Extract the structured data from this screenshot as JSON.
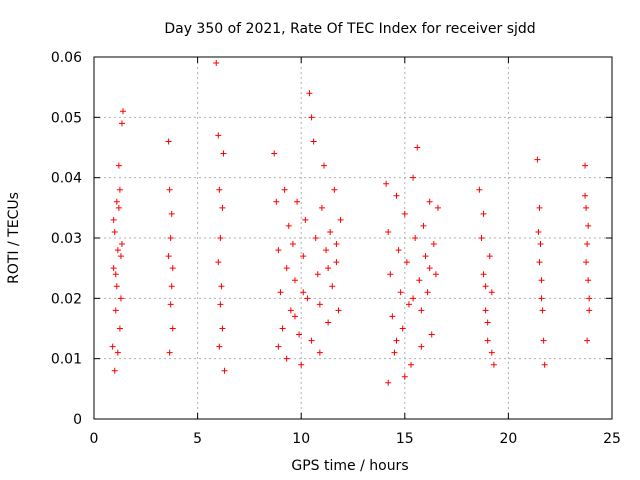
{
  "chart_data": {
    "type": "scatter",
    "title": "Day 350 of 2021, Rate Of TEC Index for receiver sjdd",
    "xlabel": "GPS time / hours",
    "ylabel": "ROTI / TECUs",
    "xlim": [
      0,
      25
    ],
    "ylim": [
      0,
      0.06
    ],
    "xticks": [
      0,
      5,
      10,
      15,
      20,
      25
    ],
    "xtick_labels": [
      "0",
      "5",
      "10",
      "15",
      "20",
      "25"
    ],
    "yticks": [
      0,
      0.01,
      0.02,
      0.03,
      0.04,
      0.05,
      0.06
    ],
    "ytick_labels": [
      "0",
      "0.01",
      "0.02",
      "0.03",
      "0.04",
      "0.05",
      "0.06"
    ],
    "grid": true,
    "marker": "+",
    "color": "#ff0000",
    "series": [
      {
        "name": "ROTI",
        "points": [
          [
            0.9,
            0.012
          ],
          [
            0.95,
            0.025
          ],
          [
            1.0,
            0.031
          ],
          [
            1.05,
            0.018
          ],
          [
            1.1,
            0.022
          ],
          [
            1.15,
            0.028
          ],
          [
            1.2,
            0.035
          ],
          [
            1.25,
            0.015
          ],
          [
            1.3,
            0.027
          ],
          [
            1.35,
            0.049
          ],
          [
            1.4,
            0.051
          ],
          [
            1.0,
            0.008
          ],
          [
            1.1,
            0.036
          ],
          [
            1.2,
            0.042
          ],
          [
            1.3,
            0.02
          ],
          [
            1.15,
            0.011
          ],
          [
            0.95,
            0.033
          ],
          [
            1.05,
            0.024
          ],
          [
            1.25,
            0.038
          ],
          [
            1.35,
            0.029
          ],
          [
            3.6,
            0.046
          ],
          [
            3.65,
            0.038
          ],
          [
            3.7,
            0.03
          ],
          [
            3.75,
            0.022
          ],
          [
            3.8,
            0.015
          ],
          [
            3.6,
            0.027
          ],
          [
            3.7,
            0.019
          ],
          [
            3.65,
            0.011
          ],
          [
            3.75,
            0.034
          ],
          [
            3.8,
            0.025
          ],
          [
            5.9,
            0.059
          ],
          [
            6.0,
            0.047
          ],
          [
            6.05,
            0.038
          ],
          [
            6.1,
            0.03
          ],
          [
            6.15,
            0.022
          ],
          [
            6.2,
            0.015
          ],
          [
            6.25,
            0.044
          ],
          [
            6.3,
            0.008
          ],
          [
            6.0,
            0.026
          ],
          [
            6.1,
            0.019
          ],
          [
            6.2,
            0.035
          ],
          [
            6.05,
            0.012
          ],
          [
            8.7,
            0.044
          ],
          [
            8.8,
            0.036
          ],
          [
            8.9,
            0.028
          ],
          [
            9.0,
            0.021
          ],
          [
            9.1,
            0.015
          ],
          [
            9.2,
            0.038
          ],
          [
            9.3,
            0.025
          ],
          [
            9.4,
            0.032
          ],
          [
            9.5,
            0.018
          ],
          [
            9.6,
            0.029
          ],
          [
            9.7,
            0.023
          ],
          [
            9.8,
            0.036
          ],
          [
            9.9,
            0.014
          ],
          [
            10.0,
            0.009
          ],
          [
            10.1,
            0.027
          ],
          [
            10.2,
            0.033
          ],
          [
            10.3,
            0.02
          ],
          [
            10.4,
            0.054
          ],
          [
            10.5,
            0.05
          ],
          [
            10.6,
            0.046
          ],
          [
            10.7,
            0.03
          ],
          [
            10.8,
            0.024
          ],
          [
            10.9,
            0.019
          ],
          [
            11.0,
            0.035
          ],
          [
            11.1,
            0.042
          ],
          [
            11.2,
            0.028
          ],
          [
            11.3,
            0.016
          ],
          [
            11.4,
            0.031
          ],
          [
            11.5,
            0.022
          ],
          [
            11.6,
            0.038
          ],
          [
            11.7,
            0.026
          ],
          [
            11.8,
            0.018
          ],
          [
            11.9,
            0.033
          ],
          [
            8.9,
            0.012
          ],
          [
            9.3,
            0.01
          ],
          [
            9.7,
            0.017
          ],
          [
            10.1,
            0.021
          ],
          [
            10.5,
            0.013
          ],
          [
            10.9,
            0.011
          ],
          [
            11.3,
            0.025
          ],
          [
            11.7,
            0.029
          ],
          [
            14.1,
            0.039
          ],
          [
            14.2,
            0.031
          ],
          [
            14.3,
            0.024
          ],
          [
            14.4,
            0.017
          ],
          [
            14.5,
            0.011
          ],
          [
            14.6,
            0.037
          ],
          [
            14.7,
            0.028
          ],
          [
            14.8,
            0.021
          ],
          [
            14.9,
            0.015
          ],
          [
            15.0,
            0.034
          ],
          [
            15.1,
            0.026
          ],
          [
            15.2,
            0.019
          ],
          [
            15.3,
            0.009
          ],
          [
            15.4,
            0.04
          ],
          [
            15.5,
            0.03
          ],
          [
            15.6,
            0.045
          ],
          [
            15.7,
            0.023
          ],
          [
            15.8,
            0.018
          ],
          [
            15.9,
            0.032
          ],
          [
            16.0,
            0.027
          ],
          [
            16.1,
            0.021
          ],
          [
            16.2,
            0.036
          ],
          [
            16.3,
            0.014
          ],
          [
            16.4,
            0.029
          ],
          [
            16.5,
            0.024
          ],
          [
            14.2,
            0.006
          ],
          [
            14.6,
            0.013
          ],
          [
            15.0,
            0.007
          ],
          [
            15.4,
            0.02
          ],
          [
            15.8,
            0.012
          ],
          [
            16.2,
            0.025
          ],
          [
            16.6,
            0.035
          ],
          [
            18.6,
            0.038
          ],
          [
            18.7,
            0.03
          ],
          [
            18.8,
            0.024
          ],
          [
            18.9,
            0.018
          ],
          [
            19.0,
            0.013
          ],
          [
            19.1,
            0.027
          ],
          [
            19.2,
            0.021
          ],
          [
            19.3,
            0.009
          ],
          [
            18.8,
            0.034
          ],
          [
            19.0,
            0.016
          ],
          [
            19.2,
            0.011
          ],
          [
            18.9,
            0.022
          ],
          [
            21.4,
            0.043
          ],
          [
            21.5,
            0.035
          ],
          [
            21.55,
            0.029
          ],
          [
            21.6,
            0.023
          ],
          [
            21.65,
            0.018
          ],
          [
            21.7,
            0.013
          ],
          [
            21.75,
            0.009
          ],
          [
            21.5,
            0.026
          ],
          [
            21.6,
            0.02
          ],
          [
            21.45,
            0.031
          ],
          [
            23.7,
            0.042
          ],
          [
            23.75,
            0.035
          ],
          [
            23.8,
            0.029
          ],
          [
            23.85,
            0.023
          ],
          [
            23.9,
            0.018
          ],
          [
            23.8,
            0.013
          ],
          [
            23.75,
            0.026
          ],
          [
            23.85,
            0.032
          ],
          [
            23.9,
            0.02
          ],
          [
            23.7,
            0.037
          ]
        ]
      }
    ]
  }
}
